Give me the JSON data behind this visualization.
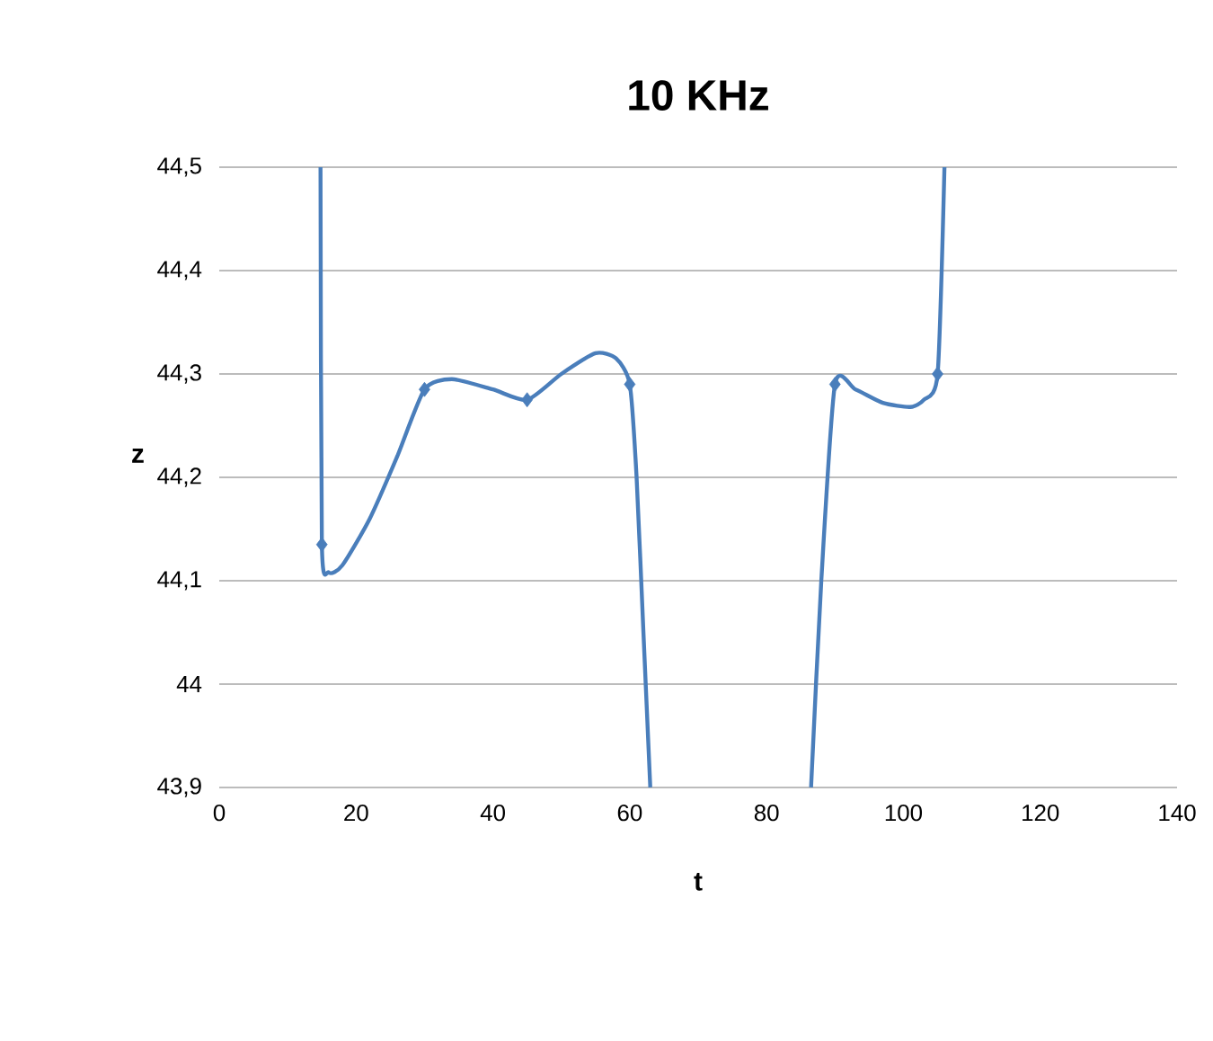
{
  "chart_data": {
    "type": "line",
    "title": "10 KHz",
    "xlabel": "t",
    "ylabel": "z",
    "xlim": [
      0,
      140
    ],
    "xticks": [
      0,
      20,
      40,
      60,
      80,
      100,
      120,
      140
    ],
    "ylim": [
      43.9,
      44.5
    ],
    "yticks": [
      {
        "value": 43.9,
        "label": "43,9"
      },
      {
        "value": 44.0,
        "label": "44"
      },
      {
        "value": 44.1,
        "label": "44,1"
      },
      {
        "value": 44.2,
        "label": "44,2"
      },
      {
        "value": 44.3,
        "label": "44,3"
      },
      {
        "value": 44.4,
        "label": "44,4"
      },
      {
        "value": 44.5,
        "label": "44,5"
      }
    ],
    "grid": "y",
    "series": [
      {
        "marker": "none",
        "color": "#4a7ebb",
        "x": [
          14.8,
          15,
          16,
          18,
          22,
          26,
          30,
          34,
          40,
          45,
          50,
          55,
          58,
          60,
          61,
          62,
          63,
          null,
          86.5,
          88,
          90,
          93,
          97,
          101,
          103,
          105,
          106
        ],
        "values": [
          44.5,
          44.135,
          44.108,
          44.115,
          44.16,
          44.22,
          44.285,
          44.295,
          44.285,
          44.275,
          44.3,
          44.32,
          44.315,
          44.29,
          44.2,
          44.05,
          43.9,
          null,
          43.9,
          44.1,
          44.29,
          44.285,
          44.272,
          44.268,
          44.275,
          44.3,
          44.5
        ]
      },
      {
        "type": "scatter",
        "marker": "diamond",
        "color": "#4a7ebb",
        "x": [
          15,
          30,
          45,
          60,
          90,
          105
        ],
        "values": [
          44.135,
          44.285,
          44.275,
          44.29,
          44.29,
          44.3
        ]
      }
    ]
  }
}
